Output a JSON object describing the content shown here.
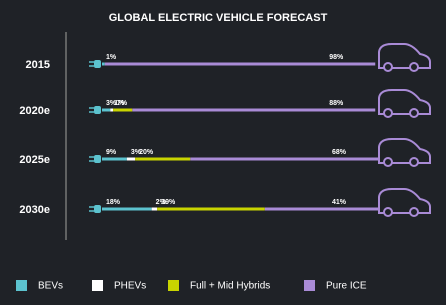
{
  "chart_data": {
    "type": "stacked-bar-horizontal",
    "title": "GLOBAL ELECTRIC VEHICLE FORECAST",
    "categories": [
      "2015",
      "2020e",
      "2025e",
      "2030e"
    ],
    "xlim": [
      0,
      100
    ],
    "series": [
      {
        "name": "BEVs",
        "color": "#5cc3cf",
        "values": [
          1,
          3,
          9,
          18
        ],
        "value_labels": [
          "1%",
          "3%",
          "9%",
          "18%"
        ]
      },
      {
        "name": "PHEVs",
        "color": "#ffffff",
        "values": [
          null,
          1,
          3,
          2
        ],
        "value_labels": [
          null,
          "1%",
          "3%",
          "2%"
        ]
      },
      {
        "name": "Full + Mid Hybrids",
        "color": "#c8d400",
        "values": [
          null,
          7,
          20,
          39
        ],
        "value_labels": [
          null,
          "7%",
          "20%",
          "39%"
        ]
      },
      {
        "name": "Pure ICE",
        "color": "#a98bd6",
        "values": [
          98,
          88,
          68,
          41
        ],
        "value_labels": [
          "98%",
          "88%",
          "68%",
          "41%"
        ]
      }
    ]
  }
}
